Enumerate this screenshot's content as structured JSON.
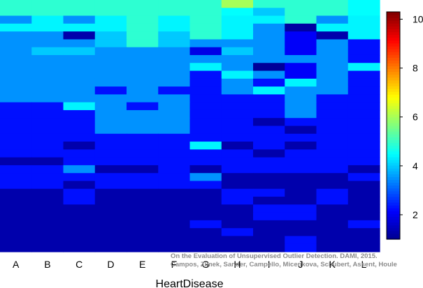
{
  "chart_data": {
    "type": "heatmap",
    "xlabel": "HeartDisease",
    "x_categories": [
      "A",
      "B",
      "C",
      "D",
      "E",
      "F",
      "G",
      "H",
      "I",
      "J",
      "K",
      "L"
    ],
    "colorbar": {
      "min": 1,
      "max": 10.3,
      "ticks": [
        2,
        4,
        6,
        8,
        10
      ]
    },
    "grid_rows": 32,
    "cells": [
      [
        4.9,
        4.9,
        4.9,
        4.9,
        4.9,
        4.9,
        4.9,
        6.0,
        4.9,
        4.9,
        4.9,
        4.5
      ],
      [
        4.9,
        4.9,
        4.9,
        4.9,
        4.9,
        4.9,
        4.9,
        4.5,
        4.0,
        4.9,
        4.9,
        4.5
      ],
      [
        3.5,
        4.4,
        3.5,
        4.4,
        4.9,
        4.4,
        4.9,
        4.4,
        4.4,
        4.9,
        3.5,
        4.4
      ],
      [
        4.4,
        4.4,
        4.4,
        4.4,
        4.9,
        4.4,
        4.9,
        4.4,
        3.5,
        1.2,
        4.4,
        4.4
      ],
      [
        3.5,
        3.5,
        1.3,
        4.0,
        4.9,
        4.0,
        4.9,
        4.4,
        3.5,
        2.1,
        1.3,
        4.4
      ],
      [
        3.5,
        3.5,
        3.5,
        4.0,
        4.9,
        4.0,
        3.5,
        3.5,
        3.5,
        2.1,
        3.5,
        2.3
      ],
      [
        3.5,
        4.0,
        4.0,
        3.5,
        3.5,
        3.5,
        1.9,
        4.0,
        3.5,
        2.1,
        3.5,
        2.3
      ],
      [
        3.5,
        3.5,
        3.5,
        3.5,
        3.5,
        3.5,
        3.5,
        3.5,
        3.5,
        3.5,
        3.5,
        2.3
      ],
      [
        3.5,
        3.5,
        3.5,
        3.5,
        3.5,
        3.5,
        4.4,
        3.5,
        1.1,
        2.1,
        3.5,
        4.4
      ],
      [
        3.5,
        3.5,
        3.5,
        3.5,
        3.5,
        3.5,
        2.3,
        4.4,
        3.5,
        2.1,
        3.5,
        2.3
      ],
      [
        3.5,
        3.5,
        3.5,
        3.5,
        3.5,
        3.5,
        2.3,
        3.5,
        2.3,
        4.4,
        3.5,
        2.3
      ],
      [
        3.5,
        3.5,
        3.5,
        2.3,
        3.5,
        2.3,
        2.3,
        3.5,
        4.4,
        3.5,
        3.5,
        2.3
      ],
      [
        3.5,
        3.5,
        3.5,
        3.5,
        3.5,
        3.5,
        2.3,
        2.3,
        2.3,
        3.5,
        2.3,
        2.3
      ],
      [
        2.3,
        2.3,
        4.4,
        3.5,
        2.3,
        3.5,
        2.3,
        2.3,
        2.3,
        3.5,
        2.3,
        2.3
      ],
      [
        2.3,
        2.3,
        2.3,
        3.5,
        3.5,
        3.5,
        2.3,
        2.3,
        2.3,
        3.5,
        2.3,
        2.3
      ],
      [
        2.3,
        2.3,
        2.3,
        3.5,
        3.5,
        3.5,
        2.3,
        2.3,
        1.3,
        2.3,
        2.3,
        2.3
      ],
      [
        2.3,
        2.3,
        2.3,
        3.5,
        3.5,
        3.5,
        2.3,
        2.3,
        2.3,
        1.3,
        2.3,
        2.3
      ],
      [
        2.3,
        2.3,
        2.3,
        2.3,
        2.3,
        2.3,
        2.3,
        2.3,
        2.3,
        2.3,
        2.3,
        2.3
      ],
      [
        2.3,
        2.3,
        1.3,
        2.3,
        2.3,
        2.3,
        4.4,
        1.3,
        2.3,
        1.3,
        2.3,
        2.3
      ],
      [
        2.3,
        2.3,
        2.3,
        2.3,
        2.3,
        2.3,
        2.3,
        2.3,
        1.3,
        2.3,
        2.3,
        2.3
      ],
      [
        1.3,
        1.3,
        2.3,
        2.3,
        2.3,
        2.3,
        2.3,
        2.3,
        2.3,
        2.3,
        2.3,
        2.3
      ],
      [
        2.3,
        2.3,
        3.5,
        1.3,
        1.3,
        2.3,
        1.3,
        2.3,
        2.3,
        2.3,
        2.3,
        1.3
      ],
      [
        2.3,
        2.3,
        2.3,
        2.3,
        2.3,
        2.3,
        3.5,
        1.3,
        1.3,
        1.3,
        1.3,
        2.3
      ],
      [
        2.3,
        2.3,
        1.3,
        2.3,
        2.3,
        2.3,
        2.3,
        1.3,
        1.3,
        1.3,
        1.3,
        1.3
      ],
      [
        1.3,
        1.3,
        2.3,
        1.3,
        1.3,
        1.3,
        1.3,
        2.3,
        2.3,
        1.3,
        2.3,
        1.3
      ],
      [
        1.3,
        1.3,
        2.3,
        1.3,
        1.3,
        1.3,
        1.3,
        2.3,
        1.3,
        1.3,
        2.3,
        1.3
      ],
      [
        1.3,
        1.3,
        1.3,
        1.3,
        1.3,
        1.3,
        1.3,
        1.3,
        2.3,
        2.3,
        1.3,
        1.3
      ],
      [
        1.3,
        1.3,
        1.3,
        1.3,
        1.3,
        1.3,
        1.3,
        1.3,
        2.3,
        2.3,
        1.3,
        1.3
      ],
      [
        1.3,
        1.3,
        1.3,
        1.3,
        1.3,
        1.3,
        2.3,
        1.3,
        1.3,
        1.3,
        1.3,
        2.3
      ],
      [
        1.3,
        1.3,
        1.3,
        1.3,
        1.3,
        1.3,
        1.3,
        2.3,
        1.3,
        1.3,
        1.3,
        1.3
      ],
      [
        1.3,
        1.3,
        1.3,
        1.3,
        1.3,
        1.3,
        1.3,
        1.3,
        1.3,
        2.3,
        1.3,
        1.3
      ],
      [
        1.3,
        1.3,
        1.3,
        1.3,
        1.3,
        1.3,
        1.3,
        1.3,
        1.3,
        2.3,
        1.3,
        1.3
      ]
    ],
    "colormap": [
      "#00008f",
      "#0000ff",
      "#007fff",
      "#00ffff",
      "#7fff7f",
      "#ffff00",
      "#ff7f00",
      "#ff0000",
      "#7f0000"
    ]
  },
  "credit": {
    "line1": "On the Evaluation of Unsupervised Outlier Detection. DAMI, 2015.",
    "line2": "Campos, Zimek, Sander, Campello, Micenkova, Schubert, Assent, Houle"
  }
}
